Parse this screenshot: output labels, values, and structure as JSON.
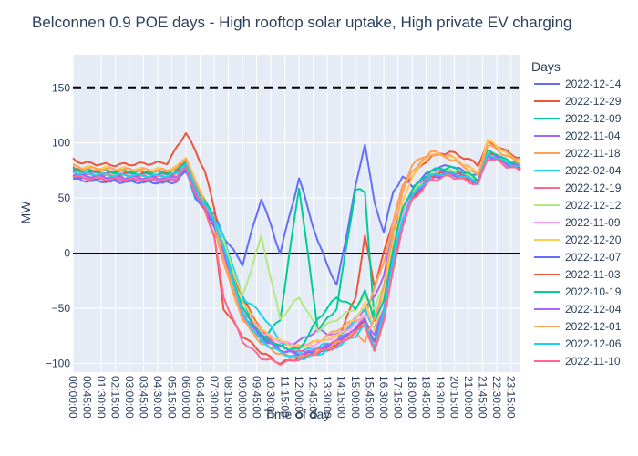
{
  "chart_data": {
    "type": "line",
    "title": "Belconnen 0.9 POE days - High rooftop solar uptake, High private EV charging",
    "xlabel": "Time of day",
    "ylabel": "MW",
    "ylim": [
      -108,
      180
    ],
    "y_ticks": [
      -100,
      -50,
      0,
      50,
      100,
      150
    ],
    "y_tick_labels": [
      "−100",
      "−50",
      "0",
      "50",
      "100",
      "150"
    ],
    "x_tick_labels": [
      "00:00:00",
      "00:45:00",
      "01:30:00",
      "02:15:00",
      "03:00:00",
      "03:45:00",
      "04:30:00",
      "05:15:00",
      "06:00:00",
      "06:45:00",
      "07:30:00",
      "08:15:00",
      "09:00:00",
      "09:45:00",
      "10:30:00",
      "11:15:00",
      "12:00:00",
      "12:45:00",
      "13:30:00",
      "14:15:00",
      "15:00:00",
      "15:45:00",
      "16:30:00",
      "17:15:00",
      "18:00:00",
      "18:45:00",
      "19:30:00",
      "20:15:00",
      "21:00:00",
      "21:45:00",
      "22:30:00",
      "23:15:00"
    ],
    "x_interval_minutes": 15,
    "reference_line": {
      "y": 150,
      "style": "dashed",
      "color": "#000000"
    },
    "zero_line": {
      "y": 0,
      "color": "#000000"
    },
    "grid": true,
    "legend": {
      "title": "Days",
      "placement": "right"
    },
    "series_anchor_hours": [
      0,
      0.5,
      2,
      5,
      5.5,
      6,
      6.5,
      7,
      7.5,
      8,
      9,
      10,
      11,
      12,
      13,
      14,
      15,
      15.5,
      16,
      16.5,
      17,
      17.5,
      18,
      19,
      20,
      21,
      21.5,
      22,
      22.5,
      23,
      23.75
    ],
    "series": [
      {
        "name": "2022-12-14",
        "color": "#636efa",
        "values": [
          68,
          66,
          65,
          64,
          65,
          74,
          58,
          45,
          35,
          15,
          -10,
          50,
          0,
          68,
          10,
          -30,
          60,
          100,
          45,
          20,
          55,
          70,
          60,
          75,
          80,
          72,
          70,
          92,
          88,
          82,
          78
        ]
      },
      {
        "name": "2022-12-29",
        "color": "#ef553b",
        "values": [
          85,
          82,
          80,
          82,
          95,
          110,
          92,
          75,
          40,
          0,
          -40,
          -70,
          -90,
          -95,
          -90,
          -80,
          -40,
          15,
          -30,
          0,
          30,
          60,
          70,
          88,
          92,
          85,
          80,
          100,
          98,
          92,
          86
        ]
      },
      {
        "name": "2022-12-09",
        "color": "#00cc96",
        "values": [
          72,
          70,
          69,
          68,
          70,
          80,
          55,
          40,
          30,
          10,
          -40,
          -80,
          -60,
          60,
          -70,
          -50,
          58,
          55,
          -60,
          -40,
          20,
          40,
          55,
          70,
          75,
          70,
          65,
          90,
          88,
          84,
          80
        ]
      },
      {
        "name": "2022-11-04",
        "color": "#ab63fa",
        "values": [
          75,
          73,
          72,
          71,
          73,
          82,
          60,
          50,
          30,
          0,
          -50,
          -75,
          -85,
          -80,
          -70,
          -75,
          -60,
          -50,
          -40,
          -20,
          20,
          40,
          55,
          72,
          75,
          70,
          65,
          88,
          86,
          82,
          78
        ]
      },
      {
        "name": "2022-11-18",
        "color": "#ffa15a",
        "values": [
          78,
          76,
          75,
          74,
          76,
          85,
          62,
          45,
          25,
          -10,
          -60,
          -80,
          -90,
          -85,
          -80,
          -70,
          -60,
          -60,
          -30,
          -10,
          30,
          60,
          80,
          92,
          88,
          78,
          72,
          100,
          96,
          90,
          84
        ]
      },
      {
        "name": "2022-02-04",
        "color": "#19d3f3",
        "values": [
          70,
          68,
          67,
          66,
          68,
          76,
          50,
          40,
          30,
          15,
          -40,
          -55,
          -80,
          -90,
          -85,
          -80,
          -60,
          -50,
          -70,
          -40,
          10,
          40,
          55,
          70,
          72,
          68,
          65,
          86,
          84,
          80,
          76
        ]
      },
      {
        "name": "2022-12-19",
        "color": "#ff6692",
        "values": [
          73,
          71,
          70,
          69,
          71,
          80,
          58,
          42,
          28,
          5,
          -55,
          -70,
          -85,
          -90,
          -88,
          -80,
          -70,
          -65,
          -85,
          -60,
          -10,
          25,
          50,
          68,
          72,
          68,
          64,
          90,
          88,
          82,
          78
        ]
      },
      {
        "name": "2022-12-12",
        "color": "#b6e880",
        "values": [
          74,
          72,
          71,
          70,
          72,
          81,
          60,
          45,
          30,
          10,
          -40,
          15,
          -60,
          -40,
          -70,
          -60,
          -50,
          -40,
          -50,
          -30,
          10,
          40,
          55,
          72,
          75,
          70,
          66,
          90,
          88,
          83,
          79
        ]
      },
      {
        "name": "2022-11-09",
        "color": "#ff97ff",
        "values": [
          71,
          69,
          68,
          67,
          69,
          78,
          56,
          42,
          28,
          5,
          -50,
          -72,
          -80,
          -85,
          -82,
          -75,
          -65,
          -55,
          -60,
          -40,
          0,
          35,
          52,
          70,
          73,
          68,
          64,
          88,
          86,
          81,
          77
        ]
      },
      {
        "name": "2022-12-20",
        "color": "#fecb52",
        "values": [
          80,
          78,
          77,
          76,
          78,
          88,
          65,
          50,
          30,
          0,
          -45,
          -70,
          -80,
          -85,
          -80,
          -75,
          -60,
          -45,
          -70,
          -40,
          10,
          45,
          70,
          90,
          88,
          78,
          72,
          102,
          98,
          90,
          84
        ]
      },
      {
        "name": "2022-12-07",
        "color": "#636efa",
        "values": [
          69,
          67,
          66,
          65,
          67,
          76,
          52,
          38,
          25,
          0,
          -55,
          -75,
          -88,
          -92,
          -90,
          -82,
          -70,
          -60,
          -80,
          -55,
          -10,
          28,
          50,
          68,
          72,
          67,
          63,
          88,
          86,
          81,
          77
        ]
      },
      {
        "name": "2022-11-03",
        "color": "#ef553b",
        "values": [
          76,
          74,
          73,
          72,
          74,
          83,
          60,
          40,
          15,
          -50,
          -75,
          -90,
          -100,
          -95,
          -90,
          -85,
          -70,
          -60,
          -90,
          -60,
          -15,
          25,
          50,
          70,
          74,
          68,
          64,
          90,
          88,
          82,
          78
        ]
      },
      {
        "name": "2022-10-19",
        "color": "#00cc96",
        "values": [
          77,
          75,
          74,
          73,
          75,
          84,
          62,
          48,
          30,
          5,
          -50,
          -75,
          -85,
          -88,
          -60,
          -40,
          -50,
          -35,
          -60,
          -45,
          5,
          40,
          58,
          75,
          78,
          72,
          66,
          92,
          90,
          84,
          80
        ]
      },
      {
        "name": "2022-12-04",
        "color": "#ab63fa",
        "values": [
          72,
          70,
          69,
          68,
          70,
          79,
          57,
          42,
          28,
          0,
          -55,
          -78,
          -88,
          -92,
          -88,
          -80,
          -68,
          -60,
          -75,
          -50,
          -5,
          30,
          52,
          70,
          73,
          68,
          64,
          89,
          87,
          82,
          78
        ]
      },
      {
        "name": "2022-12-01",
        "color": "#ffa15a",
        "values": [
          79,
          77,
          76,
          75,
          77,
          86,
          63,
          46,
          28,
          -5,
          -60,
          -82,
          -92,
          -95,
          -90,
          -82,
          -72,
          -80,
          -60,
          -30,
          20,
          55,
          75,
          90,
          86,
          76,
          70,
          98,
          94,
          88,
          82
        ]
      },
      {
        "name": "2022-12-06",
        "color": "#19d3f3",
        "values": [
          74,
          72,
          71,
          70,
          72,
          81,
          59,
          44,
          30,
          5,
          -55,
          -80,
          -90,
          -96,
          -92,
          -85,
          -75,
          -65,
          -85,
          -55,
          -5,
          30,
          52,
          70,
          73,
          68,
          64,
          89,
          87,
          82,
          78
        ]
      },
      {
        "name": "2022-11-10",
        "color": "#ff6692",
        "values": [
          70,
          68,
          67,
          66,
          68,
          77,
          54,
          40,
          15,
          -40,
          -80,
          -95,
          -100,
          -96,
          -90,
          -85,
          -72,
          -65,
          -90,
          -60,
          -15,
          25,
          48,
          66,
          70,
          65,
          62,
          86,
          84,
          79,
          75
        ]
      }
    ]
  }
}
